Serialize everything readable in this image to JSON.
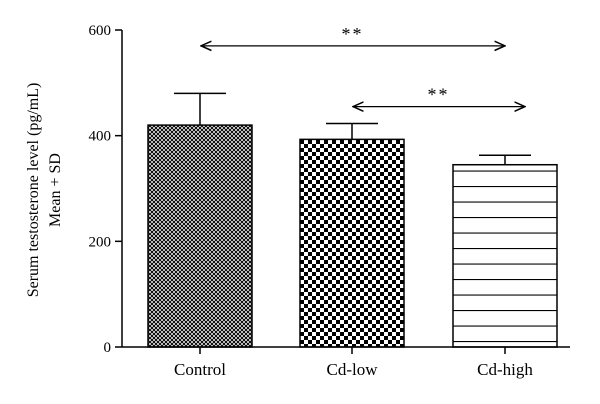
{
  "chart_data": {
    "type": "bar",
    "categories": [
      "Control",
      "Cd-low",
      "Cd-high"
    ],
    "values": [
      420,
      393,
      345
    ],
    "error_plus": [
      60,
      30,
      18
    ],
    "patterns": [
      "fine-crosshatch",
      "checkerboard",
      "horizontal-lines"
    ],
    "ylabel_line1": "Serum testosterone level (pg/mL)",
    "ylabel_line2": "Mean + SD",
    "ylim": [
      0,
      600
    ],
    "yticks": [
      0,
      200,
      400,
      600
    ],
    "grid": false,
    "significance": [
      {
        "from": "Control",
        "to": "Cd-high",
        "label": "**",
        "y": 570
      },
      {
        "from": "Cd-low",
        "to": "Cd-high",
        "label": "**",
        "y": 455
      }
    ]
  }
}
